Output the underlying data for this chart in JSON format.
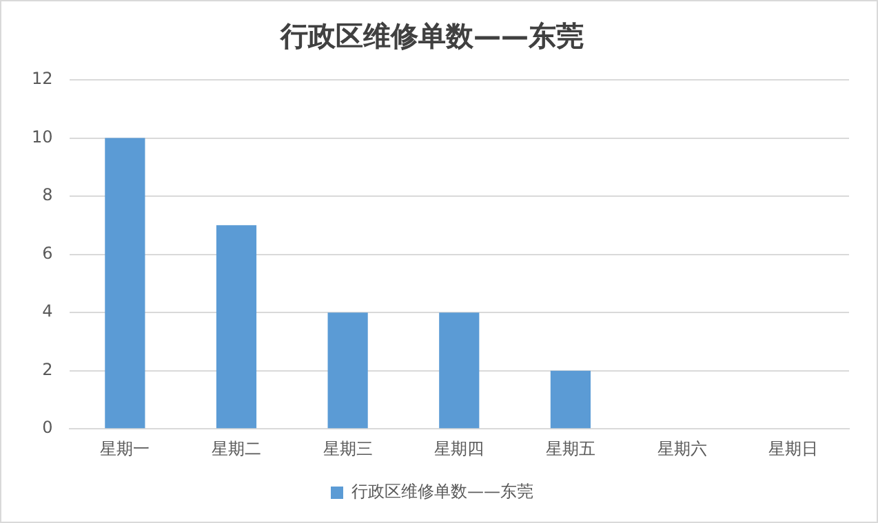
{
  "chart_data": {
    "type": "bar",
    "title": "行政区维修单数——东莞",
    "categories": [
      "星期一",
      "星期二",
      "星期三",
      "星期四",
      "星期五",
      "星期六",
      "星期日"
    ],
    "series": [
      {
        "name": "行政区维修单数——东莞",
        "color": "#5b9bd5",
        "values": [
          10,
          7,
          4,
          4,
          2,
          0,
          0
        ]
      }
    ],
    "ylim": [
      0,
      12
    ],
    "yticks": [
      0,
      2,
      4,
      6,
      8,
      10,
      12
    ],
    "grid": "y",
    "legend": "bottom"
  }
}
